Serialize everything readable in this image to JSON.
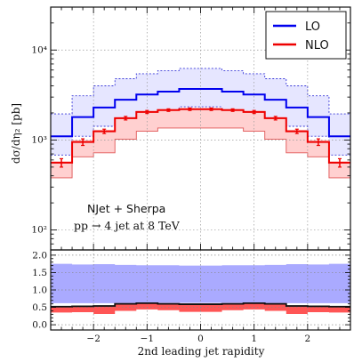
{
  "chart_data": [
    {
      "type": "line",
      "scale": "log",
      "ylabel": "dσ/dη₂ [pb]",
      "ylim": [
        60,
        30000
      ],
      "xlim": [
        -2.8,
        2.8
      ],
      "x_bin_edges": [
        -2.8,
        -2.4,
        -2.0,
        -1.6,
        -1.2,
        -0.8,
        -0.4,
        0.0,
        0.4,
        0.8,
        1.2,
        1.6,
        2.0,
        2.4,
        2.8
      ],
      "y_tick_labels": [
        "10²",
        "10³",
        "10⁴"
      ],
      "grid": true,
      "legend_position": "top-right",
      "series": [
        {
          "name": "LO",
          "color": "#0000ee",
          "band_color": "#aaaaff",
          "values": [
            1100,
            1800,
            2300,
            2800,
            3200,
            3450,
            3700,
            3700,
            3450,
            3200,
            2800,
            2300,
            1800,
            1100
          ],
          "band_low": [
            680,
            1100,
            1420,
            1750,
            2000,
            2180,
            2340,
            2340,
            2180,
            2000,
            1750,
            1420,
            1100,
            680
          ],
          "band_high": [
            1950,
            3100,
            4000,
            4800,
            5450,
            5900,
            6250,
            6250,
            5900,
            5450,
            4800,
            4000,
            3100,
            1950
          ]
        },
        {
          "name": "NLO",
          "color": "#ee0000",
          "band_color": "#ff9f9f",
          "values": [
            560,
            950,
            1250,
            1750,
            2050,
            2150,
            2200,
            2200,
            2150,
            2050,
            1750,
            1250,
            950,
            560
          ],
          "band_low": [
            380,
            650,
            720,
            1020,
            1250,
            1360,
            1360,
            1360,
            1360,
            1250,
            1020,
            720,
            650,
            380
          ],
          "band_high": [
            580,
            1000,
            1300,
            1800,
            2120,
            2220,
            2270,
            2270,
            2220,
            2120,
            1800,
            1300,
            1000,
            580
          ],
          "errors": [
            60,
            80,
            70,
            80,
            80,
            70,
            70,
            70,
            70,
            80,
            80,
            70,
            80,
            60
          ]
        }
      ],
      "annotations": [
        "NJet + Sherpa",
        "pp → 4 jet at 8 TeV"
      ]
    },
    {
      "type": "line",
      "scale": "linear",
      "xlabel": "2nd leading jet rapidity",
      "ylim": [
        -0.15,
        2.15
      ],
      "y_ticks": [
        0.0,
        0.5,
        1.0,
        1.5,
        2.0
      ],
      "x_ticks": [
        -2,
        -1,
        0,
        1,
        2
      ],
      "grid": true,
      "series": [
        {
          "name": "LO",
          "band_color": "#aaaaff",
          "band_low": [
            0.62,
            0.62,
            0.62,
            0.62,
            0.62,
            0.63,
            0.63,
            0.63,
            0.63,
            0.62,
            0.62,
            0.62,
            0.62,
            0.62
          ],
          "band_high": [
            1.75,
            1.73,
            1.74,
            1.72,
            1.71,
            1.71,
            1.7,
            1.7,
            1.71,
            1.71,
            1.72,
            1.74,
            1.73,
            1.75
          ]
        },
        {
          "name": "NLO",
          "color": "#111111",
          "band_color": "#ff5555",
          "values": [
            0.52,
            0.53,
            0.54,
            0.6,
            0.62,
            0.6,
            0.59,
            0.59,
            0.6,
            0.62,
            0.6,
            0.54,
            0.53,
            0.52
          ],
          "band_low": [
            0.35,
            0.36,
            0.31,
            0.4,
            0.44,
            0.42,
            0.37,
            0.37,
            0.42,
            0.44,
            0.4,
            0.31,
            0.36,
            0.35
          ],
          "band_high": [
            0.53,
            0.55,
            0.55,
            0.62,
            0.64,
            0.62,
            0.61,
            0.61,
            0.62,
            0.64,
            0.62,
            0.55,
            0.55,
            0.53
          ]
        }
      ]
    }
  ],
  "legend": {
    "lo_label": "LO",
    "nlo_label": "NLO"
  },
  "annotation": {
    "line1": "NJet + Sherpa",
    "line2": "pp → 4 jet at 8 TeV"
  }
}
